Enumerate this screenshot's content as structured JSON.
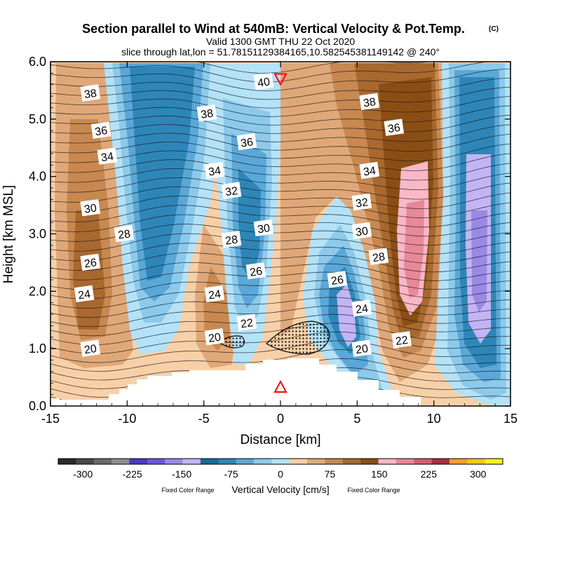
{
  "chart_data": {
    "type": "contour-cross-section",
    "title": "Section parallel to Wind at 540mB: Vertical Velocity & Pot.Temp.",
    "title_mark": "(C)",
    "subtitle1": "Valid 1300 GMT THU 22 Oct 2020",
    "subtitle2": "slice through lat,lon = 51.78151129384165,10.582545381149142 @ 240°",
    "xlabel": "Distance [km]",
    "ylabel": "Height [km MSL]",
    "xlim": [
      -15,
      15
    ],
    "ylim": [
      0.0,
      6.0
    ],
    "x_ticks": [
      -15,
      -10,
      -5,
      0,
      5,
      10,
      15
    ],
    "x_tick_labels": [
      "-15",
      "-10",
      "-5",
      "0",
      "5",
      "10",
      "15"
    ],
    "y_ticks": [
      0,
      1,
      2,
      3,
      4,
      5,
      6
    ],
    "y_tick_labels": [
      "0.0",
      "1.0",
      "2.0",
      "3.0",
      "4.0",
      "5.0",
      "6.0"
    ],
    "isentrope_labels": [
      {
        "text": "38",
        "x": -12.4,
        "y": 5.45
      },
      {
        "text": "36",
        "x": -11.7,
        "y": 4.8
      },
      {
        "text": "34",
        "x": -11.3,
        "y": 4.35
      },
      {
        "text": "30",
        "x": -12.4,
        "y": 3.45
      },
      {
        "text": "28",
        "x": -10.2,
        "y": 3.0
      },
      {
        "text": "26",
        "x": -12.4,
        "y": 2.5
      },
      {
        "text": "24",
        "x": -12.8,
        "y": 1.95
      },
      {
        "text": "20",
        "x": -12.4,
        "y": 1.0
      },
      {
        "text": "38",
        "x": -4.8,
        "y": 5.1
      },
      {
        "text": "36",
        "x": -2.2,
        "y": 4.6
      },
      {
        "text": "34",
        "x": -4.3,
        "y": 4.1
      },
      {
        "text": "32",
        "x": -3.2,
        "y": 3.75
      },
      {
        "text": "28",
        "x": -3.2,
        "y": 2.9
      },
      {
        "text": "30",
        "x": -1.1,
        "y": 3.1
      },
      {
        "text": "26",
        "x": -1.6,
        "y": 2.35
      },
      {
        "text": "24",
        "x": -4.3,
        "y": 1.95
      },
      {
        "text": "22",
        "x": -2.2,
        "y": 1.45
      },
      {
        "text": "20",
        "x": -4.3,
        "y": 1.2
      },
      {
        "text": "40",
        "x": -1.1,
        "y": 5.65
      },
      {
        "text": "38",
        "x": 5.8,
        "y": 5.3
      },
      {
        "text": "36",
        "x": 7.4,
        "y": 4.85
      },
      {
        "text": "34",
        "x": 5.8,
        "y": 4.1
      },
      {
        "text": "32",
        "x": 5.3,
        "y": 3.55
      },
      {
        "text": "30",
        "x": 5.3,
        "y": 3.05
      },
      {
        "text": "28",
        "x": 6.4,
        "y": 2.6
      },
      {
        "text": "26",
        "x": 3.7,
        "y": 2.2
      },
      {
        "text": "24",
        "x": 5.3,
        "y": 1.7
      },
      {
        "text": "20",
        "x": 5.3,
        "y": 1.0
      },
      {
        "text": "22",
        "x": 7.9,
        "y": 1.15
      }
    ],
    "markers": [
      {
        "kind": "triangle-down",
        "x": 0.0,
        "y": 5.7,
        "color": "#ff0000"
      },
      {
        "kind": "triangle-up",
        "x": 0.0,
        "y": 0.33,
        "color": "#ff0000"
      }
    ],
    "colorbar": {
      "title": "Vertical Velocity [cm/s]",
      "note_left": "Fixed Color Range",
      "note_right": "Fixed Color Range",
      "tick_labels": [
        "-300",
        "-225",
        "-150",
        "-75",
        "0",
        "75",
        "150",
        "225",
        "300"
      ],
      "tick_values": [
        -300,
        -225,
        -150,
        -75,
        0,
        75,
        150,
        225,
        300
      ],
      "range": [
        -337.5,
        337.5
      ],
      "colors": [
        "#2a2a2a",
        "#4a4a4a",
        "#6a6a6a",
        "#8e8e8e",
        "#4a3ac0",
        "#6b57d8",
        "#9a8ae6",
        "#c3b5f5",
        "#1a6a9a",
        "#2e86b8",
        "#5aa8d8",
        "#8ccaec",
        "#b4e2f8",
        "#f8d0a8",
        "#e0a878",
        "#c88850",
        "#a8682e",
        "#8a4e14",
        "#f8b8c8",
        "#e88898",
        "#d06070",
        "#a83040",
        "#f0a030",
        "#f8c818",
        "#f8f020"
      ]
    }
  }
}
